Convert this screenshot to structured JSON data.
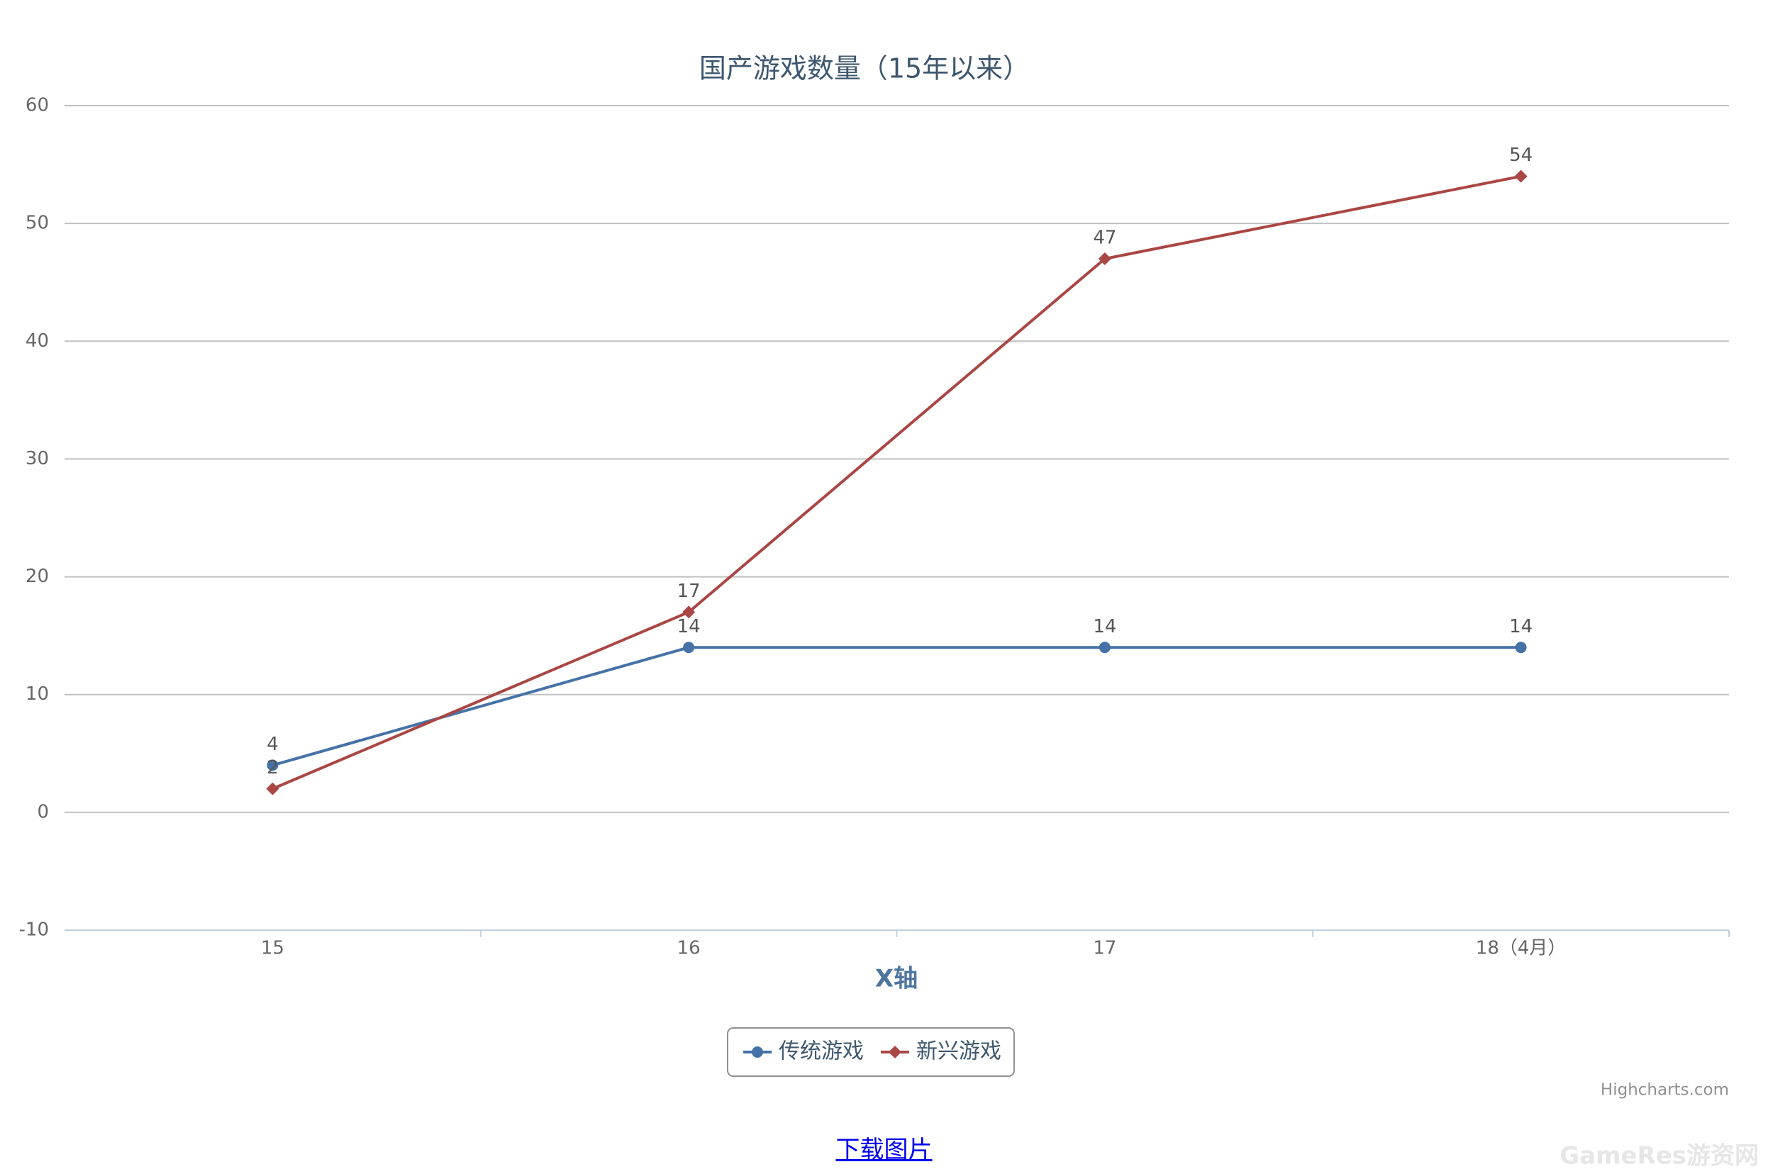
{
  "chart_data": {
    "type": "line",
    "title": "国产游戏数量（15年以来）",
    "x_label": "X轴",
    "categories": [
      "15",
      "16",
      "17",
      "18（4月）"
    ],
    "series": [
      {
        "name": "传统游戏",
        "color": "#4572A7",
        "marker": "circle",
        "values": [
          4,
          14,
          14,
          14
        ]
      },
      {
        "name": "新兴游戏",
        "color": "#AA4643",
        "marker": "diamond",
        "values": [
          2,
          17,
          47,
          54
        ]
      }
    ],
    "ylim": [
      -10,
      60
    ],
    "yticks": [
      -10,
      0,
      10,
      20,
      30,
      40,
      50,
      60
    ],
    "grid": true,
    "data_labels": true,
    "legend": "bottom",
    "credit": "Highcharts.com"
  },
  "link": "下载图片",
  "watermark": "GameRes游资网"
}
